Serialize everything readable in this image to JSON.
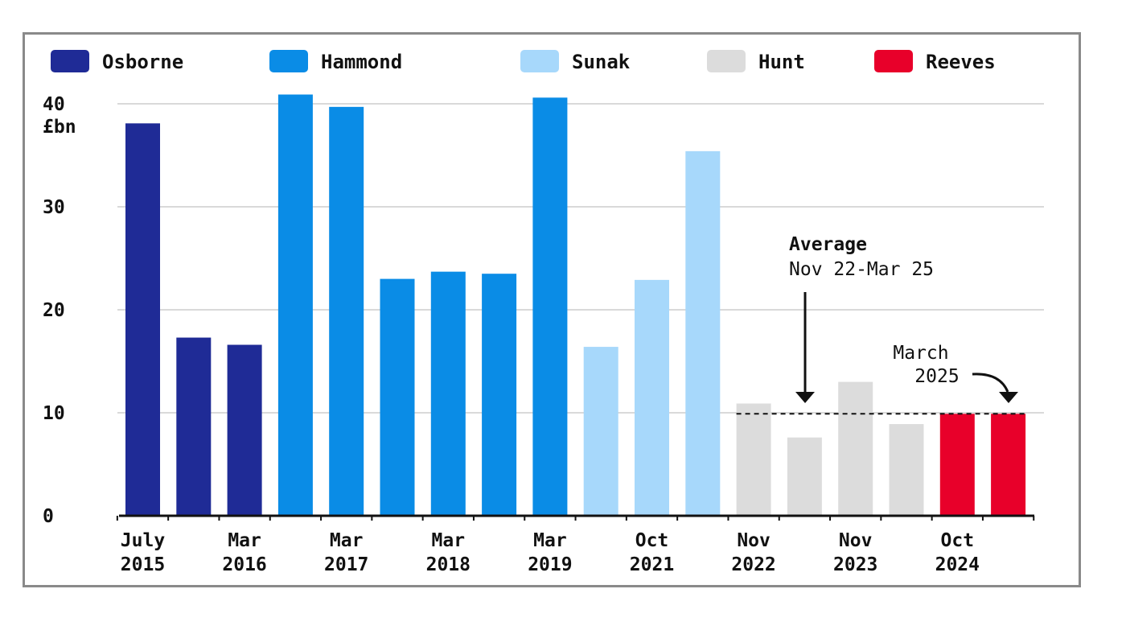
{
  "chart_data": {
    "type": "bar",
    "title": "",
    "xlabel": "",
    "ylabel": "£bn",
    "ylim": [
      0,
      40
    ],
    "yticks": [
      "0",
      "10",
      "20",
      "30",
      "40"
    ],
    "grid": true,
    "legend_position": "top",
    "series": [
      {
        "name": "Osborne",
        "color": "#1f2b96"
      },
      {
        "name": "Hammond",
        "color": "#0a8ce6"
      },
      {
        "name": "Sunak",
        "color": "#a7d8fb"
      },
      {
        "name": "Hunt",
        "color": "#dcdcdc"
      },
      {
        "name": "Reeves",
        "color": "#e8002a"
      }
    ],
    "bars": [
      {
        "series": "Osborne",
        "value": 38.1
      },
      {
        "series": "Osborne",
        "value": 17.3
      },
      {
        "series": "Osborne",
        "value": 16.6
      },
      {
        "series": "Hammond",
        "value": 40.9
      },
      {
        "series": "Hammond",
        "value": 39.7
      },
      {
        "series": "Hammond",
        "value": 23.0
      },
      {
        "series": "Hammond",
        "value": 23.7
      },
      {
        "series": "Hammond",
        "value": 23.5
      },
      {
        "series": "Hammond",
        "value": 40.6
      },
      {
        "series": "Sunak",
        "value": 16.4
      },
      {
        "series": "Sunak",
        "value": 22.9
      },
      {
        "series": "Sunak",
        "value": 35.4
      },
      {
        "series": "Hunt",
        "value": 10.9
      },
      {
        "series": "Hunt",
        "value": 7.6
      },
      {
        "series": "Hunt",
        "value": 13.0
      },
      {
        "series": "Hunt",
        "value": 8.9
      },
      {
        "series": "Reeves",
        "value": 9.9
      },
      {
        "series": "Reeves",
        "value": 9.9
      }
    ],
    "x_tick_labels": [
      {
        "line1": "July",
        "line2": "2015"
      },
      {
        "line1": "Mar",
        "line2": "2016"
      },
      {
        "line1": "Mar",
        "line2": "2017"
      },
      {
        "line1": "Mar",
        "line2": "2018"
      },
      {
        "line1": "Mar",
        "line2": "2019"
      },
      {
        "line1": "Oct",
        "line2": "2021"
      },
      {
        "line1": "Nov",
        "line2": "2022"
      },
      {
        "line1": "Nov",
        "line2": "2023"
      },
      {
        "line1": "Oct",
        "line2": "2024"
      }
    ],
    "average_line": {
      "value": 9.9,
      "from_bar": 12,
      "to_bar": 17
    },
    "annotations": {
      "average_title": "Average",
      "average_range": "Nov 22-Mar 25",
      "march_line1": "March",
      "march_line2": "2025"
    }
  }
}
